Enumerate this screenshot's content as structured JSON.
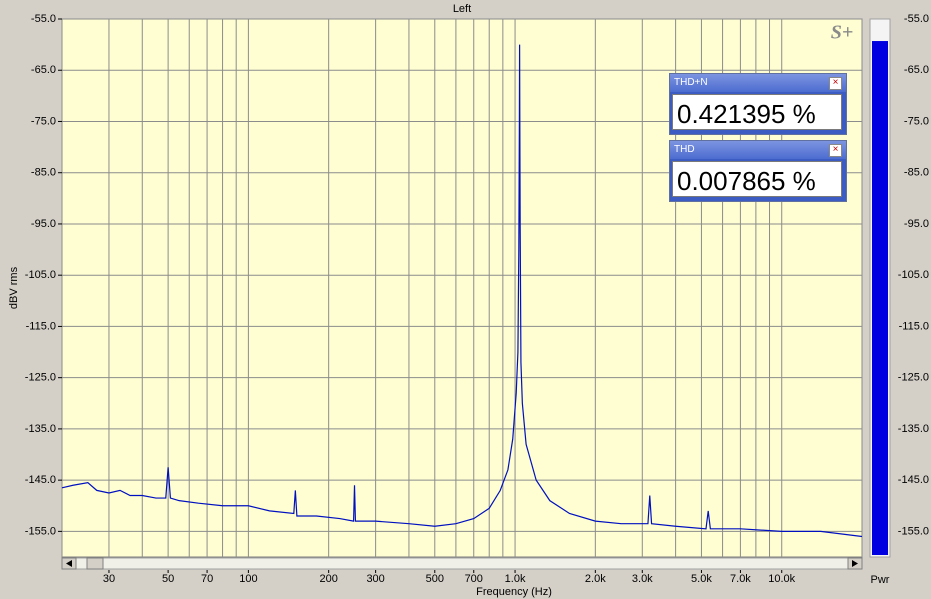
{
  "chart_data": {
    "type": "line",
    "title": "Left",
    "x_label": "Frequency (Hz)",
    "y_label": "dBV rms",
    "logo": "S+",
    "x_scale": "log",
    "grid": true,
    "xlim": [
      20,
      20000
    ],
    "ylim": [
      -160,
      -55
    ],
    "xticks": [
      30,
      50,
      70,
      100,
      200,
      300,
      500,
      700,
      {
        "value": 1000,
        "label": "1.0k"
      },
      {
        "value": 2000,
        "label": "2.0k"
      },
      {
        "value": 3000,
        "label": "3.0k"
      },
      {
        "value": 5000,
        "label": "5.0k"
      },
      {
        "value": 7000,
        "label": "7.0k"
      },
      {
        "value": 10000,
        "label": "10.0k"
      }
    ],
    "xgrid": [
      20,
      30,
      40,
      50,
      60,
      70,
      80,
      90,
      100,
      200,
      300,
      400,
      500,
      600,
      700,
      800,
      900,
      1000,
      2000,
      3000,
      4000,
      5000,
      6000,
      7000,
      8000,
      9000,
      10000,
      20000
    ],
    "yticks": [
      {
        "value": -55,
        "label": "-55.0"
      },
      {
        "value": -65,
        "label": "-65.0"
      },
      {
        "value": -75,
        "label": "-75.0"
      },
      {
        "value": -85,
        "label": "-85.0"
      },
      {
        "value": -95,
        "label": "-95.0"
      },
      {
        "value": -105,
        "label": "-105.0"
      },
      {
        "value": -115,
        "label": "-115.0"
      },
      {
        "value": -125,
        "label": "-125.0"
      },
      {
        "value": -135,
        "label": "-135.0"
      },
      {
        "value": -145,
        "label": "-145.0"
      },
      {
        "value": -155,
        "label": "-155.0"
      }
    ],
    "series": [
      {
        "color": "#0010c0",
        "x": [
          20,
          22,
          25,
          27,
          30,
          33,
          36,
          40,
          45,
          49,
          50,
          51,
          55,
          65,
          80,
          100,
          120,
          148,
          150,
          152,
          180,
          220,
          248,
          250,
          252,
          300,
          400,
          500,
          600,
          700,
          800,
          880,
          940,
          980,
          1010,
          1025,
          1033,
          1038,
          1040,
          1042,
          1045,
          1052,
          1065,
          1100,
          1200,
          1350,
          1600,
          2000,
          2500,
          3150,
          3200,
          3250,
          4000,
          5200,
          5300,
          5400,
          7000,
          10000,
          14000,
          20000
        ],
        "values": [
          -146.5,
          -146,
          -145.5,
          -147,
          -147.5,
          -147,
          -148,
          -148,
          -148.5,
          -148.5,
          -142.5,
          -148.5,
          -149,
          -149.5,
          -150,
          -150,
          -151,
          -151.5,
          -147,
          -152,
          -152,
          -152.5,
          -153,
          -146,
          -153,
          -153,
          -153.5,
          -154,
          -153.5,
          -152.5,
          -150.5,
          -147,
          -143,
          -137,
          -128,
          -120,
          -100,
          -75,
          -60,
          -75,
          -95,
          -122,
          -130,
          -138,
          -145,
          -149,
          -151.5,
          -153,
          -153.5,
          -153.5,
          -148,
          -153.5,
          -154,
          -154.5,
          -151,
          -154.5,
          -154.5,
          -155,
          -155,
          -156
        ]
      }
    ],
    "meter": {
      "label": "Pwr",
      "value": -59.3,
      "color": "#0000e0"
    }
  },
  "readouts": [
    {
      "title": "THD+N",
      "value": "0.421395 %"
    },
    {
      "title": "THD",
      "value": "0.007865 %"
    }
  ]
}
